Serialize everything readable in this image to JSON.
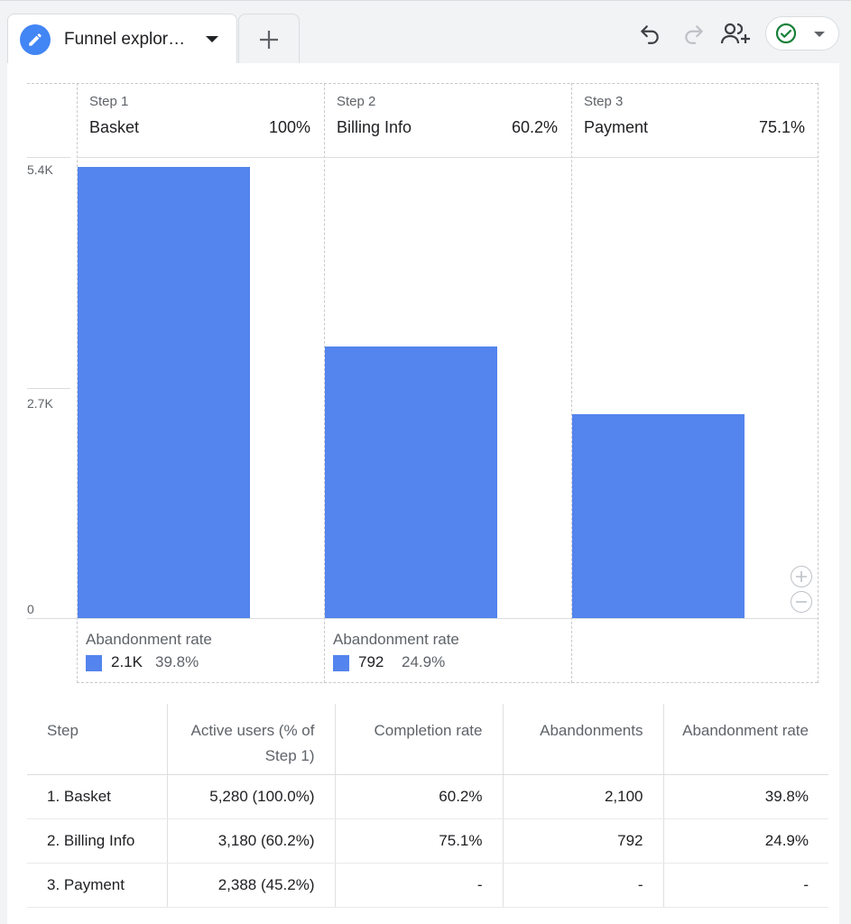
{
  "tabs": {
    "active_label": "Funnel explor…",
    "add_label": "+"
  },
  "toolbar": {
    "undo_icon": "undo-icon",
    "redo_icon": "redo-icon",
    "share_icon": "person-add-icon",
    "status_icon": "check-circle-icon"
  },
  "colors": {
    "bar": "#5484ed",
    "accent": "#4285f4",
    "status_ok": "#188038"
  },
  "chart_data": {
    "type": "bar",
    "categories": [
      "Basket",
      "Billing Info",
      "Payment"
    ],
    "values": [
      5280,
      3180,
      2388
    ],
    "ylim": [
      0,
      5400
    ],
    "yticks": [
      "5.4K",
      "2.7K",
      "0"
    ],
    "steps": [
      {
        "num": "Step 1",
        "name": "Basket",
        "pct": "100%"
      },
      {
        "num": "Step 2",
        "name": "Billing Info",
        "pct": "60.2%"
      },
      {
        "num": "Step 3",
        "name": "Payment",
        "pct": "75.1%"
      }
    ],
    "abandonment": [
      {
        "label": "Abandonment rate",
        "value": "2.1K",
        "pct": "39.8%"
      },
      {
        "label": "Abandonment rate",
        "value": "792",
        "pct": "24.9%"
      }
    ],
    "grid": true
  },
  "table": {
    "headers": {
      "step": "Step",
      "active_users": "Active users (% of Step 1)",
      "completion": "Completion rate",
      "abandonments": "Abandonments",
      "abandonment_rate": "Abandonment rate"
    },
    "rows": [
      {
        "step": "1. Basket",
        "active_users": "5,280 (100.0%)",
        "completion": "60.2%",
        "abandonments": "2,100",
        "abandonment_rate": "39.8%"
      },
      {
        "step": "2. Billing Info",
        "active_users": "3,180 (60.2%)",
        "completion": "75.1%",
        "abandonments": "792",
        "abandonment_rate": "24.9%"
      },
      {
        "step": "3. Payment",
        "active_users": "2,388 (45.2%)",
        "completion": "-",
        "abandonments": "-",
        "abandonment_rate": "-"
      }
    ]
  }
}
